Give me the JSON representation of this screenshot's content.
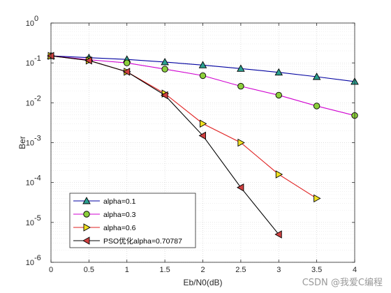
{
  "watermark": "CSDN @我爱C编程",
  "chart_data": {
    "type": "line",
    "xlabel": "Eb/N0(dB)",
    "ylabel": "Ber",
    "xlim": [
      0,
      4
    ],
    "ylim": [
      1e-06,
      1
    ],
    "yscale": "log",
    "grid": true,
    "minor_grid": true,
    "legend_position": "bottom-left",
    "x_ticks": [
      "0",
      "0.5",
      "1",
      "1.5",
      "2",
      "2.5",
      "3",
      "3.5",
      "4"
    ],
    "y_tick_bases": [
      "10",
      "10",
      "10",
      "10",
      "10",
      "10",
      "10"
    ],
    "y_tick_exps": [
      "-6",
      "-5",
      "-4",
      "-3",
      "-2",
      "-1",
      "0"
    ],
    "series": [
      {
        "name": "alpha=0.1",
        "color": "#0000a0",
        "marker": "triangle-up",
        "marker_fill": "#2ca090",
        "x": [
          0,
          0.5,
          1,
          1.5,
          2,
          2.5,
          3,
          3.5,
          4
        ],
        "y": [
          0.15,
          0.135,
          0.122,
          0.105,
          0.088,
          0.072,
          0.058,
          0.045,
          0.034
        ]
      },
      {
        "name": "alpha=0.3",
        "color": "#d000d0",
        "marker": "circle",
        "marker_fill": "#8ccf3c",
        "x": [
          0,
          0.5,
          1,
          1.5,
          2,
          2.5,
          3,
          3.5,
          4
        ],
        "y": [
          0.15,
          0.12,
          0.1,
          0.07,
          0.048,
          0.026,
          0.0155,
          0.0083,
          0.0048
        ]
      },
      {
        "name": "alpha=0.6",
        "color": "#e02020",
        "marker": "triangle-right",
        "marker_fill": "#f0e020",
        "x": [
          0,
          0.5,
          1,
          1.5,
          2,
          2.5,
          3,
          3.5
        ],
        "y": [
          0.15,
          0.115,
          0.06,
          0.017,
          0.003,
          0.001,
          0.00016,
          4e-05
        ]
      },
      {
        "name": "PSO优化alpha=0.70787",
        "color": "#000000",
        "marker": "triangle-left",
        "marker_fill": "#d04040",
        "x": [
          0,
          0.5,
          1,
          1.5,
          2,
          2.5,
          3
        ],
        "y": [
          0.15,
          0.115,
          0.06,
          0.0155,
          0.0015,
          7.5e-05,
          5e-06
        ]
      }
    ]
  }
}
